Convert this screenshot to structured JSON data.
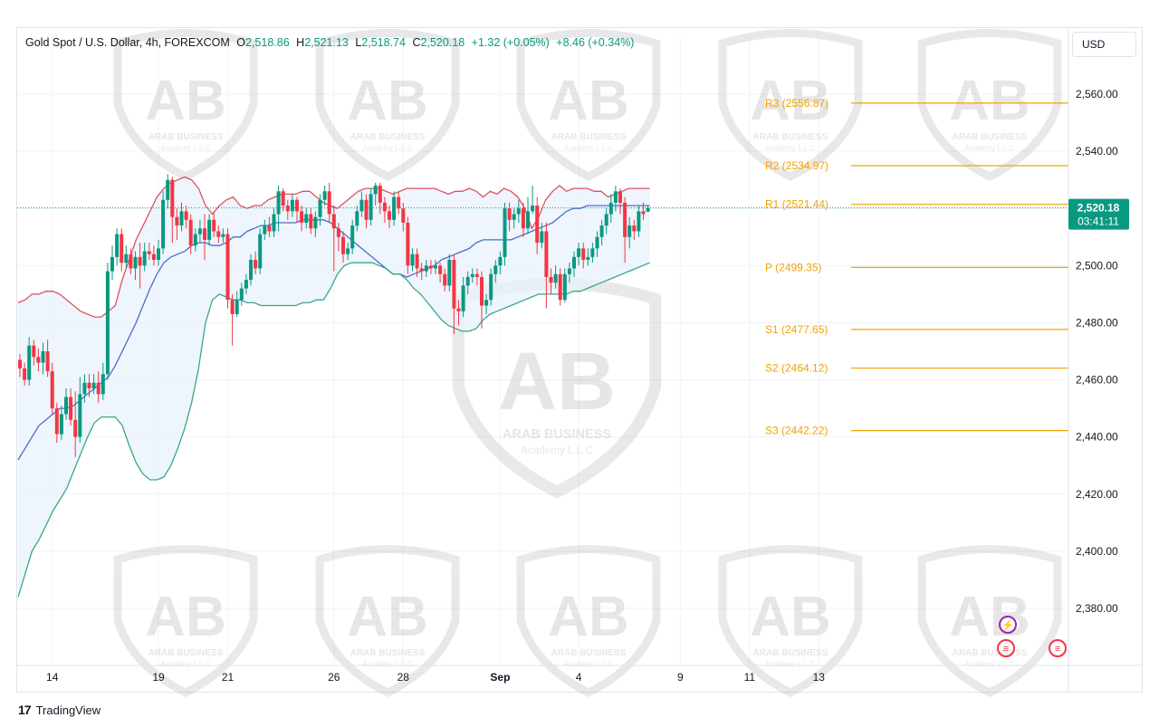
{
  "header": {
    "symbol": "Gold Spot / U.S. Dollar, 4h, FOREXCOM",
    "o_label": "O",
    "o_value": "2,518.86",
    "h_label": "H",
    "h_value": "2,521.13",
    "l_label": "L",
    "l_value": "2,518.74",
    "c_label": "C",
    "c_value": "2,520.18",
    "change": "+1.32 (+0.05%)",
    "change2": "+8.46 (+0.34%)"
  },
  "currency": "USD",
  "branding": "TradingView",
  "watermark": {
    "title": "ARAB BUSINESS",
    "subtitle": "Academy L.L.C"
  },
  "colors": {
    "up": "#089981",
    "down": "#f23645",
    "pivot": "#f0a400",
    "upper_band": "#e0525c",
    "lower_band": "#3aa68c",
    "mid_band": "#4a6fc3",
    "band_fill": "#e8f1fb",
    "price_tag": "#089981"
  },
  "price_tag": {
    "price": "2,520.18",
    "countdown": "03:41:11"
  },
  "chart_data": {
    "type": "candlestick",
    "ylim": [
      2360,
      2580
    ],
    "y_ticks": [
      "2,560.00",
      "2,540.00",
      "2,520.00",
      "2,500.00",
      "2,480.00",
      "2,460.00",
      "2,440.00",
      "2,420.00",
      "2,400.00",
      "2,380.00"
    ],
    "x_ticks": [
      {
        "label": "14",
        "bar": 7
      },
      {
        "label": "19",
        "bar": 30
      },
      {
        "label": "21",
        "bar": 45
      },
      {
        "label": "26",
        "bar": 68
      },
      {
        "label": "28",
        "bar": 83
      },
      {
        "label": "Sep",
        "bar": 104
      },
      {
        "label": "4",
        "bar": 121
      },
      {
        "label": "9",
        "bar": 143
      },
      {
        "label": "11",
        "bar": 158
      },
      {
        "label": "13",
        "bar": 173
      }
    ],
    "pivot_levels": [
      {
        "label": "R3 (2556.87)",
        "value": 2556.87
      },
      {
        "label": "R2 (2534.97)",
        "value": 2534.97
      },
      {
        "label": "R1 (2521.44)",
        "value": 2521.44
      },
      {
        "label": "P (2499.35)",
        "value": 2499.35
      },
      {
        "label": "S1 (2477.65)",
        "value": 2477.65
      },
      {
        "label": "S2 (2464.12)",
        "value": 2464.12
      },
      {
        "label": "S3 (2442.22)",
        "value": 2442.22
      }
    ],
    "last_price": 2520.18,
    "candles": [
      [
        2467,
        2464,
        2469,
        2461
      ],
      [
        2464,
        2460,
        2466,
        2458
      ],
      [
        2460,
        2472,
        2475,
        2458
      ],
      [
        2472,
        2468,
        2474,
        2465
      ],
      [
        2468,
        2466,
        2471,
        2463
      ],
      [
        2466,
        2470,
        2473,
        2462
      ],
      [
        2470,
        2463,
        2474,
        2461
      ],
      [
        2463,
        2450,
        2466,
        2448
      ],
      [
        2450,
        2441,
        2452,
        2438
      ],
      [
        2441,
        2448,
        2451,
        2439
      ],
      [
        2448,
        2454,
        2457,
        2446
      ],
      [
        2454,
        2446,
        2457,
        2444
      ],
      [
        2446,
        2440,
        2456,
        2433
      ],
      [
        2440,
        2455,
        2461,
        2438
      ],
      [
        2455,
        2459,
        2462,
        2452
      ],
      [
        2459,
        2457,
        2462,
        2454
      ],
      [
        2457,
        2459,
        2462,
        2455
      ],
      [
        2459,
        2455,
        2463,
        2452
      ],
      [
        2455,
        2462,
        2466,
        2453
      ],
      [
        2462,
        2498,
        2501,
        2460
      ],
      [
        2498,
        2503,
        2507,
        2495
      ],
      [
        2503,
        2511,
        2513,
        2500
      ],
      [
        2511,
        2501,
        2513,
        2498
      ],
      [
        2501,
        2504,
        2507,
        2499
      ],
      [
        2504,
        2499,
        2506,
        2497
      ],
      [
        2499,
        2503,
        2505,
        2495
      ],
      [
        2503,
        2500,
        2508,
        2492
      ],
      [
        2500,
        2505,
        2508,
        2498
      ],
      [
        2505,
        2504,
        2508,
        2502
      ],
      [
        2504,
        2502,
        2507,
        2500
      ],
      [
        2502,
        2506,
        2509,
        2500
      ],
      [
        2506,
        2523,
        2526,
        2504
      ],
      [
        2523,
        2530,
        2532,
        2520
      ],
      [
        2530,
        2517,
        2531,
        2508
      ],
      [
        2517,
        2514,
        2520,
        2509
      ],
      [
        2514,
        2519,
        2522,
        2512
      ],
      [
        2519,
        2516,
        2521,
        2513
      ],
      [
        2516,
        2507,
        2518,
        2504
      ],
      [
        2507,
        2511,
        2513,
        2505
      ],
      [
        2511,
        2513,
        2516,
        2508
      ],
      [
        2513,
        2509,
        2518,
        2502
      ],
      [
        2509,
        2516,
        2518,
        2507
      ],
      [
        2516,
        2512,
        2519,
        2510
      ],
      [
        2512,
        2510,
        2514,
        2508
      ],
      [
        2510,
        2511,
        2513,
        2508
      ],
      [
        2511,
        2488,
        2513,
        2485
      ],
      [
        2488,
        2483,
        2490,
        2472
      ],
      [
        2483,
        2488,
        2491,
        2482
      ],
      [
        2488,
        2492,
        2494,
        2486
      ],
      [
        2492,
        2495,
        2497,
        2490
      ],
      [
        2495,
        2502,
        2504,
        2493
      ],
      [
        2502,
        2499,
        2505,
        2497
      ],
      [
        2499,
        2511,
        2513,
        2497
      ],
      [
        2511,
        2514,
        2516,
        2509
      ],
      [
        2514,
        2512,
        2517,
        2510
      ],
      [
        2512,
        2518,
        2520,
        2510
      ],
      [
        2518,
        2526,
        2528,
        2512
      ],
      [
        2526,
        2521,
        2527,
        2519
      ],
      [
        2521,
        2519,
        2523,
        2516
      ],
      [
        2519,
        2523,
        2525,
        2517
      ],
      [
        2523,
        2519,
        2524,
        2515
      ],
      [
        2519,
        2515,
        2521,
        2512
      ],
      [
        2515,
        2518,
        2520,
        2513
      ],
      [
        2518,
        2513,
        2520,
        2511
      ],
      [
        2513,
        2517,
        2519,
        2510
      ],
      [
        2517,
        2523,
        2525,
        2514
      ],
      [
        2523,
        2526,
        2528,
        2521
      ],
      [
        2526,
        2518,
        2529,
        2515
      ],
      [
        2518,
        2513,
        2521,
        2498
      ],
      [
        2513,
        2510,
        2515,
        2505
      ],
      [
        2510,
        2504,
        2512,
        2501
      ],
      [
        2504,
        2506,
        2508,
        2502
      ],
      [
        2506,
        2514,
        2516,
        2504
      ],
      [
        2514,
        2519,
        2521,
        2512
      ],
      [
        2519,
        2523,
        2526,
        2517
      ],
      [
        2523,
        2516,
        2525,
        2513
      ],
      [
        2516,
        2525,
        2527,
        2514
      ],
      [
        2525,
        2528,
        2529,
        2521
      ],
      [
        2528,
        2522,
        2529,
        2518
      ],
      [
        2522,
        2519,
        2524,
        2515
      ],
      [
        2519,
        2516,
        2521,
        2513
      ],
      [
        2516,
        2524,
        2526,
        2514
      ],
      [
        2524,
        2520,
        2526,
        2518
      ],
      [
        2520,
        2515,
        2522,
        2512
      ],
      [
        2515,
        2500,
        2517,
        2497
      ],
      [
        2500,
        2504,
        2506,
        2498
      ],
      [
        2504,
        2499,
        2506,
        2496
      ],
      [
        2499,
        2498,
        2501,
        2495
      ],
      [
        2498,
        2500,
        2502,
        2496
      ],
      [
        2500,
        2499,
        2502,
        2497
      ],
      [
        2499,
        2500,
        2502,
        2497
      ],
      [
        2500,
        2497,
        2501,
        2494
      ],
      [
        2497,
        2493,
        2499,
        2491
      ],
      [
        2493,
        2502,
        2504,
        2491
      ],
      [
        2502,
        2485,
        2504,
        2476
      ],
      [
        2485,
        2484,
        2488,
        2479
      ],
      [
        2484,
        2493,
        2496,
        2482
      ],
      [
        2493,
        2496,
        2498,
        2490
      ],
      [
        2496,
        2497,
        2499,
        2494
      ],
      [
        2497,
        2496,
        2499,
        2493
      ],
      [
        2496,
        2486,
        2498,
        2478
      ],
      [
        2486,
        2488,
        2490,
        2483
      ],
      [
        2488,
        2497,
        2499,
        2486
      ],
      [
        2497,
        2500,
        2502,
        2494
      ],
      [
        2500,
        2503,
        2505,
        2497
      ],
      [
        2503,
        2520,
        2522,
        2500
      ],
      [
        2520,
        2516,
        2522,
        2512
      ],
      [
        2516,
        2518,
        2520,
        2513
      ],
      [
        2518,
        2520,
        2523,
        2515
      ],
      [
        2520,
        2513,
        2522,
        2510
      ],
      [
        2513,
        2519,
        2524,
        2511
      ],
      [
        2519,
        2521,
        2528,
        2518
      ],
      [
        2521,
        2508,
        2524,
        2504
      ],
      [
        2508,
        2512,
        2515,
        2506
      ],
      [
        2512,
        2496,
        2515,
        2485
      ],
      [
        2496,
        2494,
        2499,
        2490
      ],
      [
        2494,
        2497,
        2500,
        2492
      ],
      [
        2497,
        2488,
        2499,
        2486
      ],
      [
        2488,
        2497,
        2499,
        2487
      ],
      [
        2497,
        2499,
        2501,
        2494
      ],
      [
        2499,
        2503,
        2505,
        2496
      ],
      [
        2503,
        2506,
        2508,
        2500
      ],
      [
        2506,
        2502,
        2508,
        2499
      ],
      [
        2502,
        2503,
        2506,
        2500
      ],
      [
        2503,
        2506,
        2508,
        2501
      ],
      [
        2506,
        2510,
        2512,
        2503
      ],
      [
        2510,
        2514,
        2516,
        2507
      ],
      [
        2514,
        2518,
        2520,
        2511
      ],
      [
        2518,
        2522,
        2525,
        2515
      ],
      [
        2522,
        2526,
        2528,
        2519
      ],
      [
        2526,
        2522,
        2527,
        2518
      ],
      [
        2522,
        2510,
        2524,
        2501
      ],
      [
        2510,
        2514,
        2517,
        2506
      ],
      [
        2514,
        2512,
        2516,
        2509
      ],
      [
        2512,
        2519,
        2521,
        2510
      ],
      [
        2519,
        2518,
        2522,
        2516
      ],
      [
        2518.86,
        2520.18,
        2521.13,
        2518.74
      ]
    ],
    "bollinger": {
      "upper": [
        2487,
        2488,
        2490,
        2490,
        2491,
        2491,
        2490,
        2488,
        2486,
        2484,
        2483,
        2482,
        2482,
        2484,
        2486,
        2495,
        2502,
        2509,
        2514,
        2519,
        2524,
        2527,
        2529,
        2530,
        2531,
        2530,
        2527,
        2521,
        2518,
        2521,
        2523,
        2524,
        2521,
        2520,
        2521,
        2521,
        2523,
        2524,
        2525,
        2525,
        2525,
        2526,
        2526,
        2524,
        2522,
        2521,
        2520,
        2522,
        2524,
        2526,
        2527,
        2527,
        2527,
        2526,
        2525,
        2526,
        2527,
        2527,
        2527,
        2527,
        2527,
        2526,
        2525,
        2526,
        2526,
        2527,
        2526,
        2524,
        2526,
        2525,
        2527,
        2526,
        2524,
        2520,
        2513,
        2517,
        2523,
        2526,
        2528,
        2526,
        2527,
        2527,
        2527,
        2526,
        2526,
        2524,
        2525,
        2526,
        2527,
        2527,
        2527,
        2527
      ],
      "middle": [
        2432,
        2436,
        2440,
        2444,
        2446,
        2448,
        2450,
        2450,
        2451,
        2453,
        2455,
        2457,
        2459,
        2461,
        2465,
        2470,
        2475,
        2480,
        2486,
        2492,
        2497,
        2501,
        2503,
        2504,
        2505,
        2507,
        2508,
        2508,
        2507,
        2507,
        2508,
        2510,
        2510,
        2512,
        2513,
        2514,
        2514,
        2515,
        2515,
        2515,
        2515,
        2516,
        2516,
        2516,
        2516,
        2515,
        2513,
        2511,
        2509,
        2507,
        2505,
        2503,
        2501,
        2499,
        2497,
        2497,
        2496,
        2497,
        2498,
        2499,
        2500,
        2502,
        2503,
        2504,
        2505,
        2506,
        2508,
        2509,
        2509,
        2509,
        2509,
        2509,
        2510,
        2511,
        2512,
        2513,
        2514,
        2515,
        2517,
        2519,
        2520,
        2520,
        2521,
        2521,
        2521,
        2521,
        2521,
        2521,
        2521,
        2521,
        2521,
        2521
      ],
      "lower": [
        2384,
        2392,
        2400,
        2404,
        2409,
        2414,
        2418,
        2422,
        2428,
        2434,
        2440,
        2445,
        2447,
        2447,
        2447,
        2444,
        2437,
        2431,
        2427,
        2425,
        2425,
        2426,
        2430,
        2436,
        2443,
        2452,
        2464,
        2480,
        2488,
        2490,
        2489,
        2488,
        2488,
        2487,
        2487,
        2486,
        2486,
        2486,
        2486,
        2486,
        2486,
        2487,
        2487,
        2488,
        2488,
        2492,
        2497,
        2500,
        2501,
        2501,
        2501,
        2501,
        2500,
        2499,
        2497,
        2497,
        2495,
        2492,
        2490,
        2487,
        2484,
        2481,
        2479,
        2478,
        2477,
        2477,
        2478,
        2481,
        2483,
        2484,
        2485,
        2486,
        2487,
        2488,
        2489,
        2490,
        2490,
        2490,
        2490,
        2490,
        2491,
        2491,
        2492,
        2493,
        2494,
        2495,
        2496,
        2497,
        2498,
        2499,
        2500,
        2501
      ]
    }
  }
}
